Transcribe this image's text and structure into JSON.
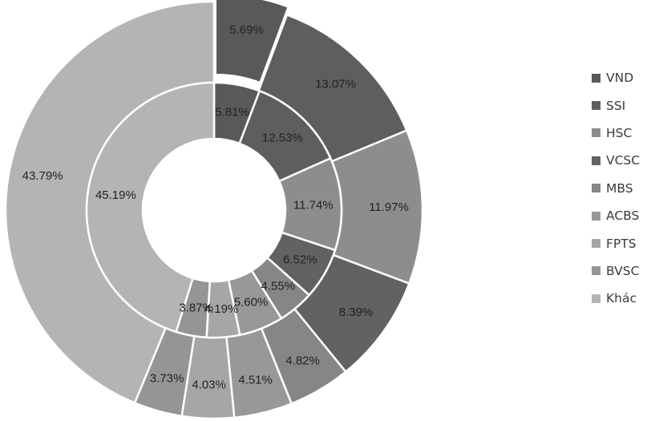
{
  "chart_data": {
    "type": "donut",
    "title": "",
    "legend_position": "right",
    "categories": [
      "VND",
      "SSI",
      "HSC",
      "VCSC",
      "MBS",
      "ACBS",
      "FPTS",
      "BVSC",
      "Khác"
    ],
    "colors": [
      "#595959",
      "#5e5e5e",
      "#8d8d8d",
      "#626262",
      "#868686",
      "#989898",
      "#a6a6a6",
      "#959595",
      "#b4b4b4"
    ],
    "series": [
      {
        "ring": "outer",
        "values": [
          5.69,
          13.07,
          11.97,
          8.39,
          4.82,
          4.51,
          4.03,
          3.73,
          43.79
        ],
        "labels": [
          "5.69%",
          "13.07%",
          "11.97%",
          "8.39%",
          "4.82%",
          "4.51%",
          "4.03%",
          "3.73%",
          "43.79%"
        ],
        "exploded": [
          "VND"
        ]
      },
      {
        "ring": "inner",
        "values": [
          5.81,
          12.53,
          11.74,
          6.52,
          4.55,
          5.6,
          4.19,
          3.87,
          45.19
        ],
        "labels": [
          "5.81%",
          "12.53%",
          "11.74%",
          "6.52%",
          "4.55%",
          "5.60%",
          "4.19%",
          "3.87%",
          "45.19%"
        ]
      }
    ]
  }
}
